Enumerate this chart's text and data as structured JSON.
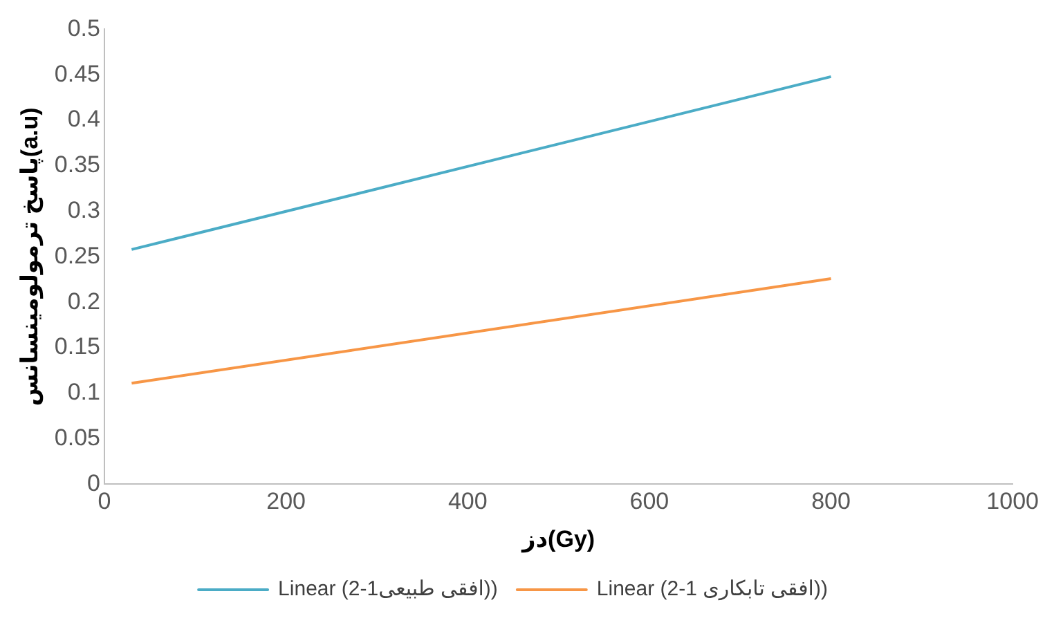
{
  "chart_data": {
    "type": "line",
    "xlabel": "دز(Gy)",
    "ylabel": "پاسخ ترمولومینسانس(a.u)",
    "x": [
      30,
      800
    ],
    "series": [
      {
        "name": "Linear (افقی طبیعی1-2))",
        "color": "#4bacc6",
        "values": [
          0.258,
          0.448
        ]
      },
      {
        "name": "Linear (افقی تابکاری 1-2))",
        "color": "#f79646",
        "values": [
          0.111,
          0.226
        ]
      }
    ],
    "xlim": [
      0,
      1000
    ],
    "xticks": [
      0,
      200,
      400,
      600,
      800,
      1000
    ],
    "ylim": [
      0,
      0.5
    ],
    "yticks": [
      0,
      0.05,
      0.1,
      0.15,
      0.2,
      0.25,
      0.3,
      0.35,
      0.4,
      0.45,
      0.5
    ],
    "grid": false,
    "legend": "bottom",
    "marker": "none",
    "line_style": "solid"
  }
}
